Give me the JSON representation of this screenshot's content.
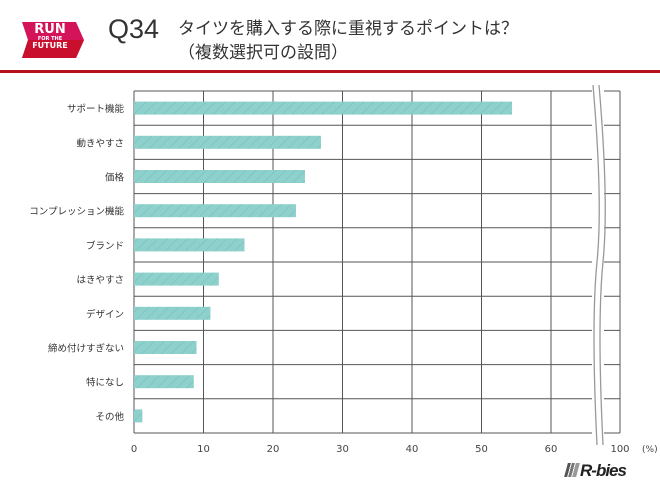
{
  "header": {
    "logo_text": [
      "RUN",
      "FOR THE",
      "FUTURE"
    ],
    "question_number": "Q34",
    "title_line1": "タイツを購入する際に重視するポイントは？",
    "title_line2": "（複数選択可の設問）"
  },
  "brand": "R-bies",
  "colors": {
    "accent": "#b5121b",
    "bar": "#8ed0cc",
    "logo": "#d4145a"
  },
  "chart_data": {
    "type": "bar",
    "orientation": "horizontal",
    "categories": [
      "サポート機能",
      "動きやすさ",
      "価格",
      "コンプレッション機能",
      "ブランド",
      "はきやすさ",
      "デザイン",
      "締め付けすぎない",
      "特になし",
      "その他"
    ],
    "values": [
      54.4,
      26.9,
      24.6,
      23.3,
      15.9,
      12.2,
      11.0,
      9.0,
      8.6,
      1.2
    ],
    "xticks": [
      "0",
      "10",
      "20",
      "30",
      "40",
      "50",
      "60",
      "100"
    ],
    "xunit": "(%)",
    "xlim": [
      0,
      100
    ],
    "axis_break": [
      60,
      100
    ],
    "grid": true
  }
}
